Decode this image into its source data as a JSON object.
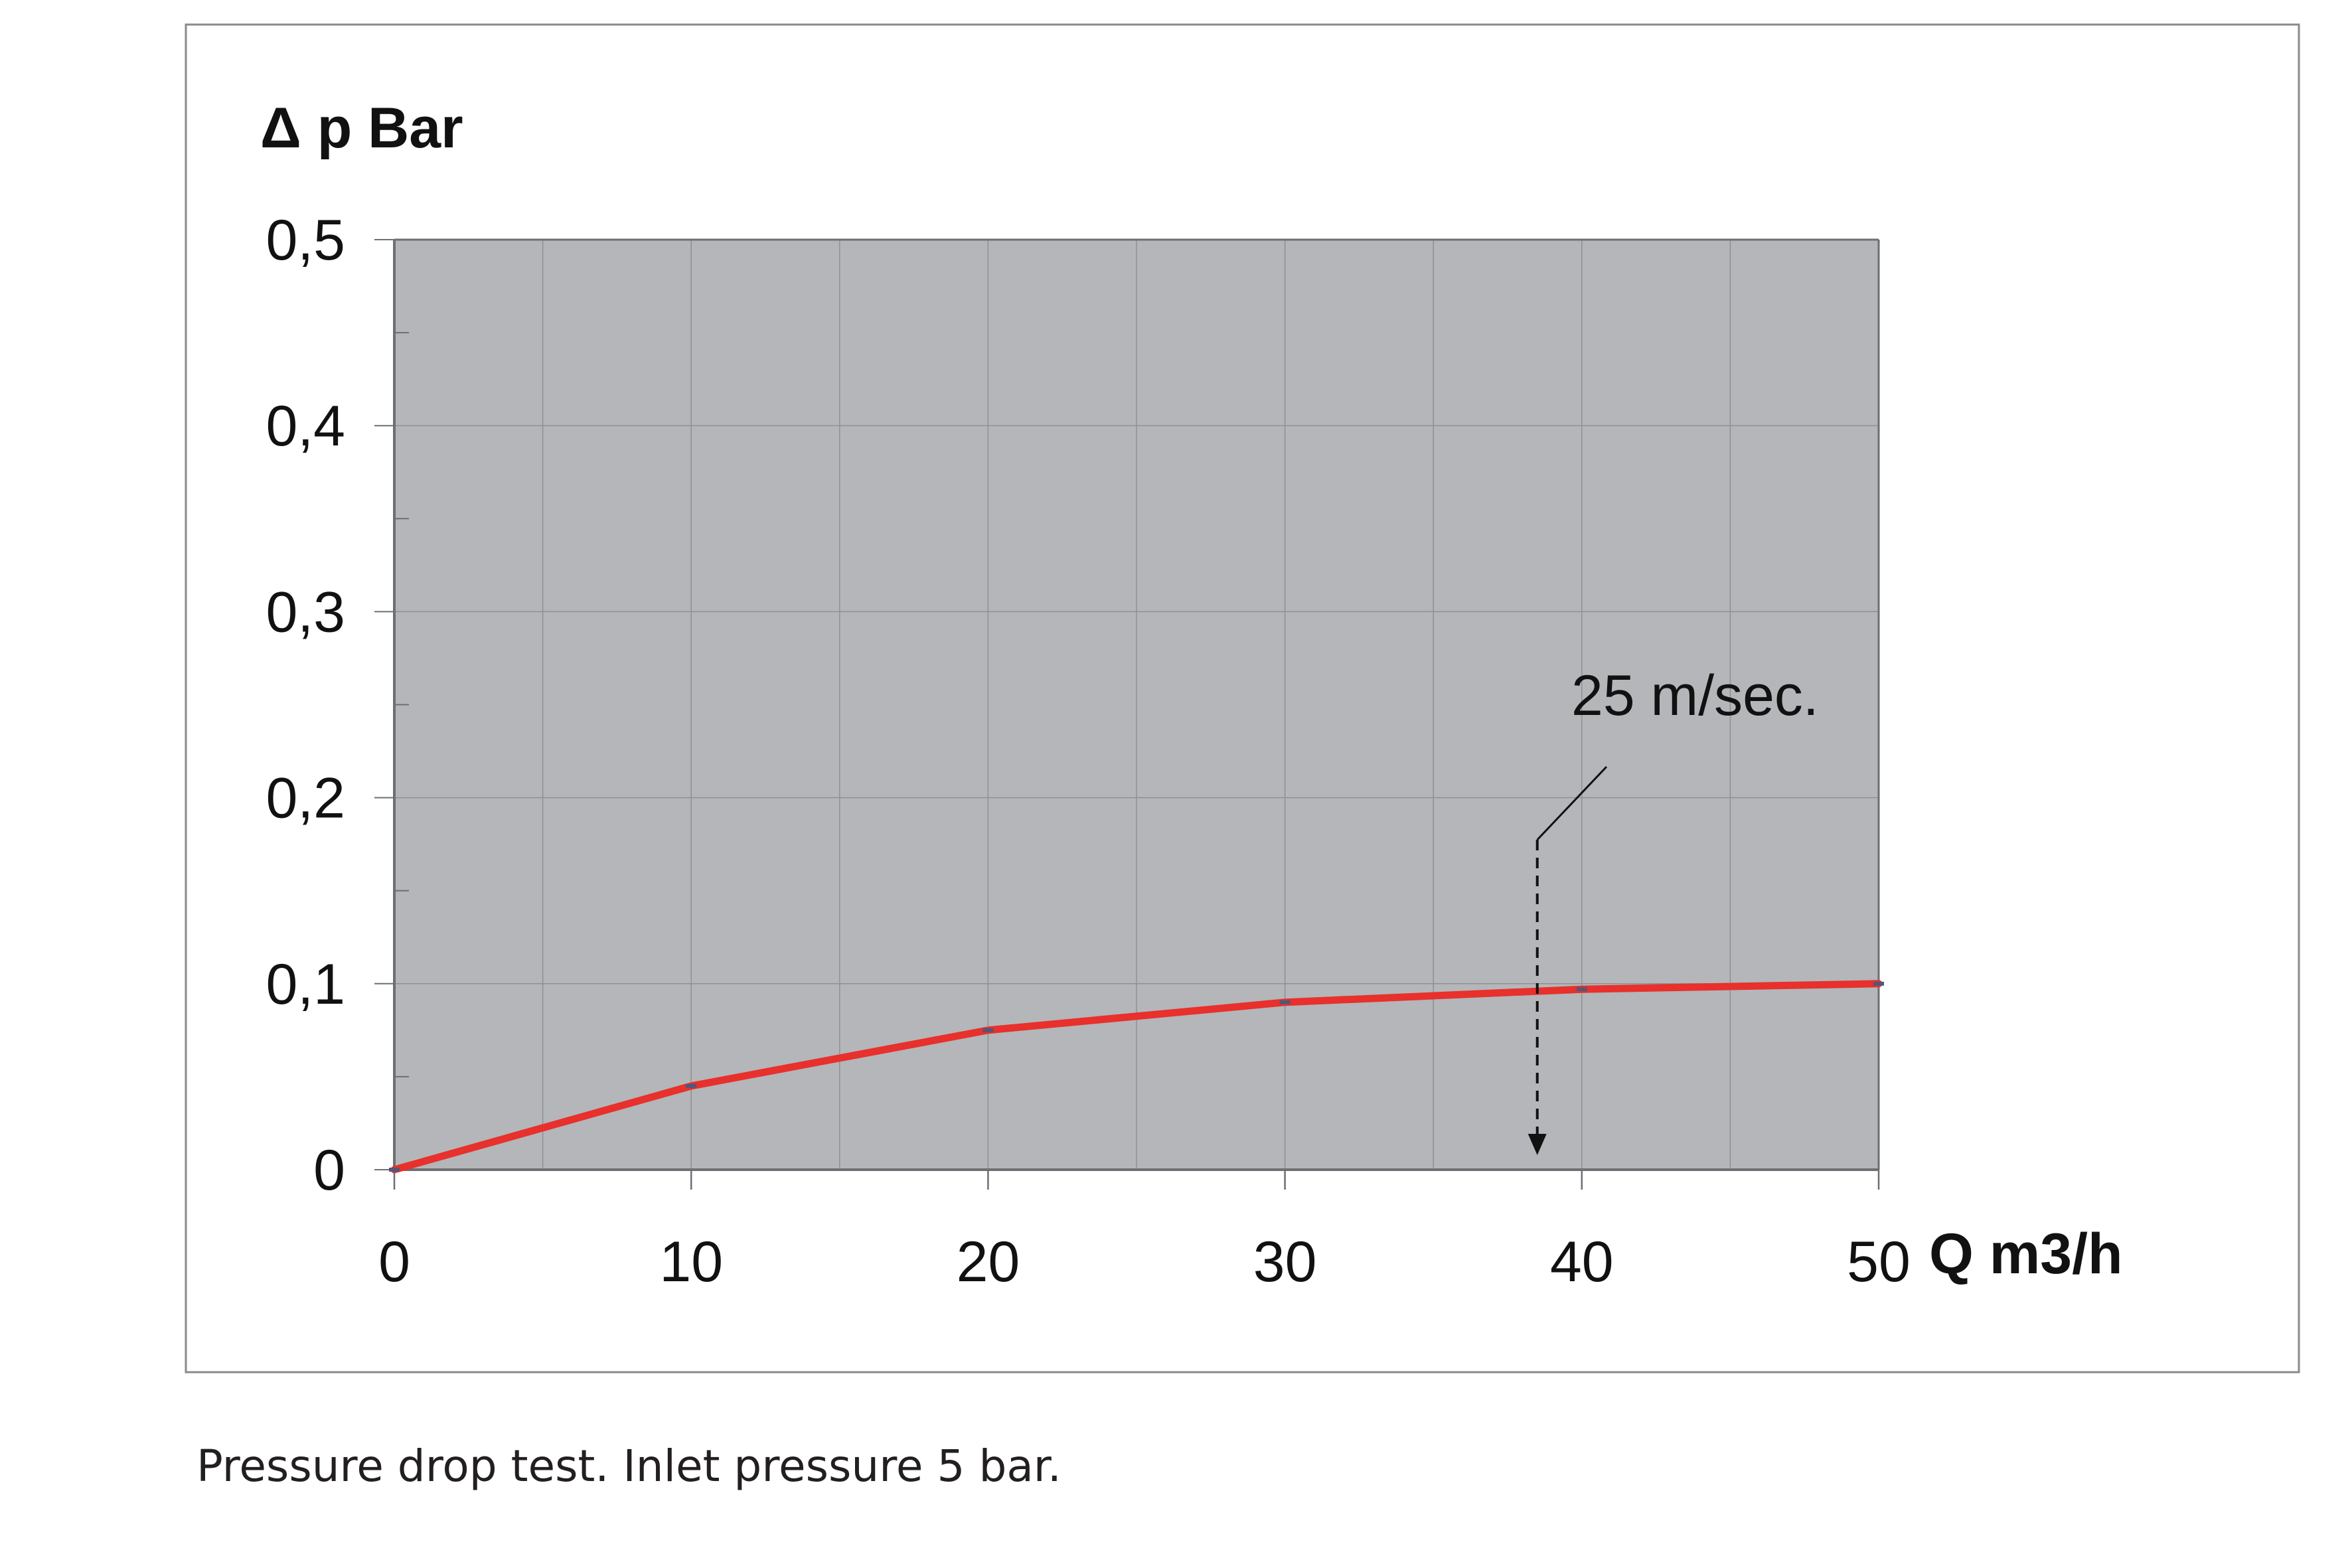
{
  "caption": "Pressure drop test. Inlet pressure 5 bar.",
  "colors": {
    "plot_bg": "#b4b6b9",
    "grid": "#8e9093",
    "line": "#e8302c",
    "axis": "#6d6f72",
    "text": "#111111",
    "frame": "#8a8a8a"
  },
  "chart_data": {
    "type": "line",
    "ylabel": "Δ p Bar",
    "xlabel": "Q m3/h",
    "xlim": [
      0,
      50
    ],
    "ylim": [
      0,
      0.5
    ],
    "x_ticks": [
      "0",
      "10",
      "20",
      "30",
      "40",
      "50"
    ],
    "y_ticks": [
      "0",
      "0,1",
      "0,2",
      "0,3",
      "0,4",
      "0,5"
    ],
    "grid": true,
    "series": [
      {
        "x": [
          0,
          10,
          20,
          30,
          40,
          50
        ],
        "values": [
          0,
          0.045,
          0.075,
          0.09,
          0.097,
          0.1
        ]
      }
    ],
    "annotation": {
      "text": "25 m/sec.",
      "x": 38.5
    }
  }
}
